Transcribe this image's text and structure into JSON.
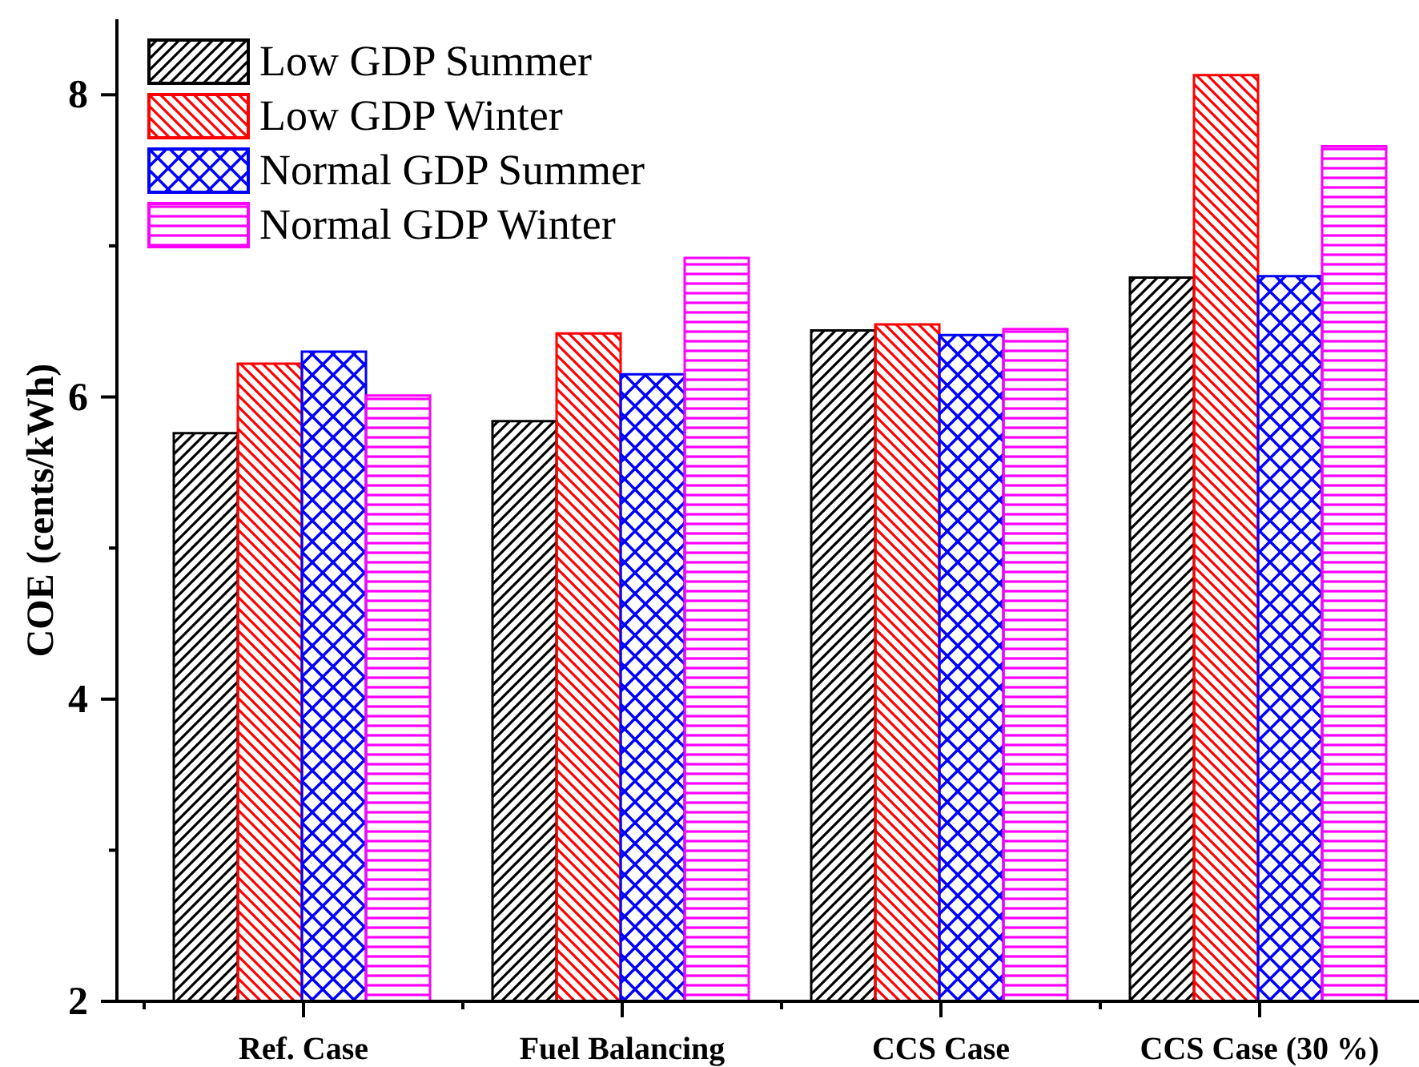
{
  "chart_data": {
    "type": "bar",
    "ylabel": "COE (cents/kWh)",
    "categories": [
      "Ref. Case",
      "Fuel Balancing",
      "CCS Case",
      "CCS Case (30 %)"
    ],
    "series": [
      {
        "name": "Low GDP Summer",
        "color": "#000000",
        "values": [
          5.76,
          5.84,
          6.44,
          6.79
        ]
      },
      {
        "name": "Low GDP Winter",
        "color": "#ff0000",
        "values": [
          6.22,
          6.42,
          6.48,
          8.13
        ]
      },
      {
        "name": "Normal GDP Summer",
        "color": "#0000ff",
        "values": [
          6.3,
          6.15,
          6.41,
          6.8
        ]
      },
      {
        "name": "Normal GDP Winter",
        "color": "#ff00ff",
        "values": [
          6.01,
          6.92,
          6.45,
          7.66
        ]
      }
    ],
    "ylim": [
      2,
      8.5
    ],
    "yticks": [
      2,
      {
        "value": 3,
        "label": null
      },
      4,
      {
        "value": 5,
        "label": null
      },
      6,
      {
        "value": 7,
        "label": null
      },
      8
    ],
    "legend": "top left"
  }
}
